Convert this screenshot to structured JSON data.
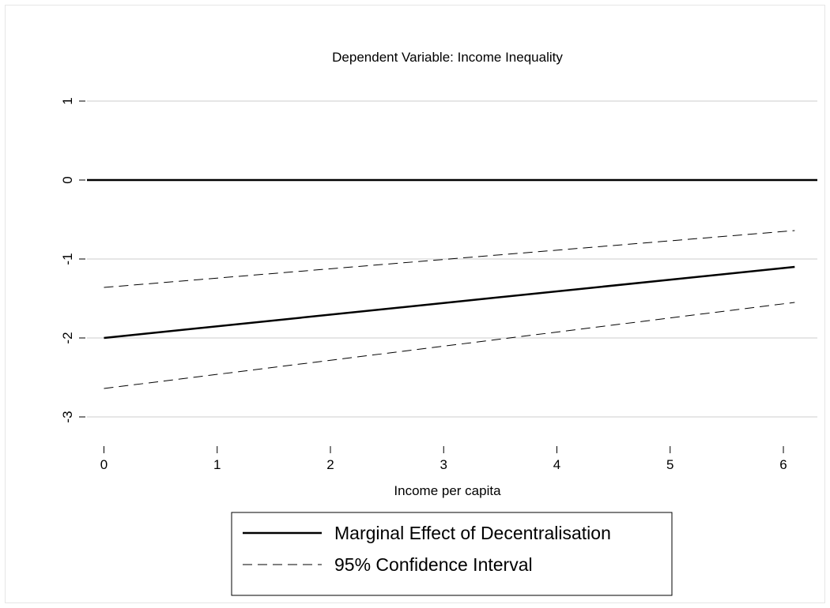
{
  "chart_data": {
    "type": "line",
    "title": "Dependent Variable: Income Inequality",
    "xlabel": "Income per capita",
    "ylabel": "",
    "xlim": [
      -0.15,
      6.3
    ],
    "ylim": [
      -3.2,
      1.2
    ],
    "x_ticks": [
      "0",
      "1",
      "2",
      "3",
      "4",
      "5",
      "6"
    ],
    "y_ticks": [
      "-3",
      "-2",
      "-1",
      "0",
      "1"
    ],
    "grid": "horizontal",
    "legend_position": "bottom-center",
    "series": [
      {
        "name": "Marginal Effect of Decentralisation",
        "style": "solid",
        "x": [
          0,
          6.1
        ],
        "y": [
          -2.0,
          -1.1
        ]
      },
      {
        "name": "95% Confidence Interval",
        "style": "dashed",
        "x": [
          0,
          6.1
        ],
        "y": [
          -1.36,
          -0.64
        ]
      },
      {
        "style": "dashed",
        "x": [
          0,
          6.1
        ],
        "y": [
          -2.64,
          -1.55
        ]
      }
    ],
    "reference_line": {
      "y": 0
    }
  },
  "colors": {
    "line": "#000000",
    "grid": "#e6e6e6",
    "background": "#ffffff"
  }
}
